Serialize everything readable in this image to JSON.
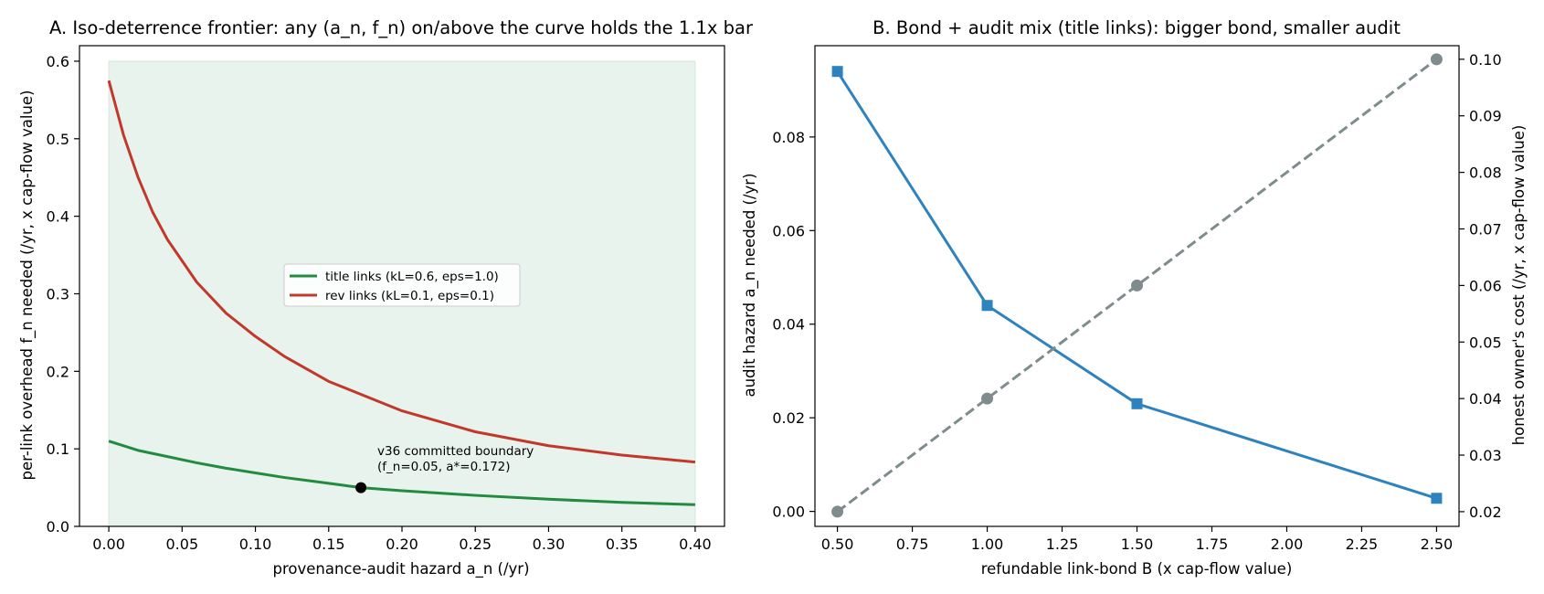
{
  "chart_data": [
    {
      "type": "line",
      "title": "A. Iso-deterrence frontier: any (a_n, f_n) on/above the curve holds the 1.1x bar",
      "xlabel": "provenance-audit hazard a_n (/yr)",
      "ylabel": "per-link overhead f_n needed (/yr, x cap-flow value)",
      "xlim": [
        -0.02,
        0.42
      ],
      "ylim": [
        0.0,
        0.62
      ],
      "xticks": [
        "0.00",
        "0.05",
        "0.10",
        "0.15",
        "0.20",
        "0.25",
        "0.30",
        "0.35",
        "0.40"
      ],
      "xtick_values": [
        0,
        0.05,
        0.1,
        0.15,
        0.2,
        0.25,
        0.3,
        0.35,
        0.4
      ],
      "yticks": [
        "0.0",
        "0.1",
        "0.2",
        "0.3",
        "0.4",
        "0.5",
        "0.6"
      ],
      "ytick_values": [
        0,
        0.1,
        0.2,
        0.3,
        0.4,
        0.5,
        0.6
      ],
      "shaded_region": {
        "x": [
          0.0,
          0.4
        ],
        "y": [
          0.0,
          0.6
        ],
        "color": "#e9f3ee"
      },
      "legend_position": "center",
      "series": [
        {
          "name": "title links (kL=0.6, eps=1.0)",
          "color": "#228b3f",
          "x": [
            0.0,
            0.02,
            0.04,
            0.06,
            0.08,
            0.1,
            0.12,
            0.14,
            0.16,
            0.172,
            0.2,
            0.25,
            0.3,
            0.35,
            0.4
          ],
          "y": [
            0.11,
            0.098,
            0.09,
            0.082,
            0.075,
            0.069,
            0.063,
            0.058,
            0.053,
            0.05,
            0.046,
            0.04,
            0.035,
            0.031,
            0.028
          ]
        },
        {
          "name": "rev links (kL=0.1, eps=0.1)",
          "color": "#c0392b",
          "x": [
            0.0,
            0.01,
            0.02,
            0.03,
            0.04,
            0.06,
            0.08,
            0.1,
            0.12,
            0.15,
            0.2,
            0.25,
            0.3,
            0.35,
            0.4
          ],
          "y": [
            0.575,
            0.505,
            0.45,
            0.405,
            0.37,
            0.315,
            0.275,
            0.245,
            0.219,
            0.187,
            0.149,
            0.122,
            0.104,
            0.092,
            0.083
          ]
        }
      ],
      "annotation": {
        "point": {
          "x": 0.172,
          "y": 0.05
        },
        "lines": [
          "v36 committed boundary",
          "(f_n=0.05, a*=0.172)"
        ]
      }
    },
    {
      "type": "line",
      "title": "B. Bond + audit mix (title links): bigger bond, smaller audit",
      "xlabel": "refundable link-bond B (x cap-flow value)",
      "ylabel": "audit hazard a_n needed (/yr)",
      "ylabel_right": "honest owner's cost (/yr, x cap-flow value)",
      "xlim": [
        0.425,
        2.575
      ],
      "ylim": [
        -0.0032,
        0.0995
      ],
      "ylim_right": [
        0.0174,
        0.1024
      ],
      "xticks": [
        "0.50",
        "0.75",
        "1.00",
        "1.25",
        "1.50",
        "1.75",
        "2.00",
        "2.25",
        "2.50"
      ],
      "xtick_values": [
        0.5,
        0.75,
        1.0,
        1.25,
        1.5,
        1.75,
        2.0,
        2.25,
        2.5
      ],
      "yticks": [
        "0.00",
        "0.02",
        "0.04",
        "0.06",
        "0.08"
      ],
      "ytick_values": [
        0,
        0.02,
        0.04,
        0.06,
        0.08
      ],
      "yticks_right": [
        "0.02",
        "0.03",
        "0.04",
        "0.05",
        "0.06",
        "0.07",
        "0.08",
        "0.09",
        "0.10"
      ],
      "ytick_values_right": [
        0.02,
        0.03,
        0.04,
        0.05,
        0.06,
        0.07,
        0.08,
        0.09,
        0.1
      ],
      "left_color": "#2e82be",
      "right_color": "#8a8f8f",
      "series": [
        {
          "axis": "left",
          "color": "#2e82be",
          "marker": "square",
          "style": "solid",
          "x": [
            0.5,
            1.0,
            1.5,
            2.5
          ],
          "y": [
            0.094,
            0.044,
            0.023,
            0.0028
          ]
        },
        {
          "axis": "right",
          "color": "#7f8c8d",
          "marker": "circle",
          "style": "dashed",
          "x": [
            0.5,
            1.0,
            1.5,
            2.5
          ],
          "y": [
            0.02,
            0.04,
            0.06,
            0.1
          ]
        }
      ]
    }
  ]
}
